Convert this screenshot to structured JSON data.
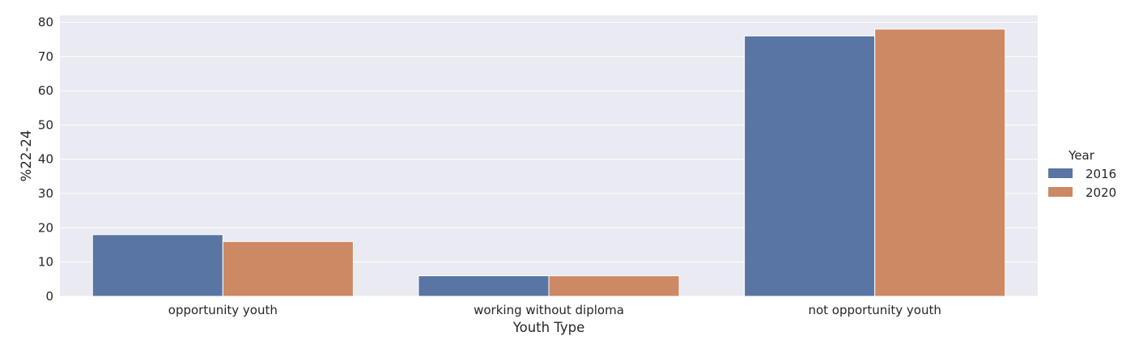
{
  "chart_data": {
    "type": "bar",
    "xlabel": "Youth Type",
    "ylabel": "%22-24",
    "categories": [
      "opportunity youth",
      "working without diploma",
      "not opportunity youth"
    ],
    "series": [
      {
        "name": "2016",
        "values": [
          18,
          6,
          76
        ],
        "color": "#5975a4"
      },
      {
        "name": "2020",
        "values": [
          16,
          6,
          78
        ],
        "color": "#cc8963"
      }
    ],
    "ylim": [
      0,
      82
    ],
    "yticks": [
      0,
      10,
      20,
      30,
      40,
      50,
      60,
      70,
      80
    ],
    "grid": true,
    "legend": {
      "title": "Year",
      "position": "right"
    },
    "plot_background": "#eaeaf2",
    "grid_color": "#ffffff"
  }
}
